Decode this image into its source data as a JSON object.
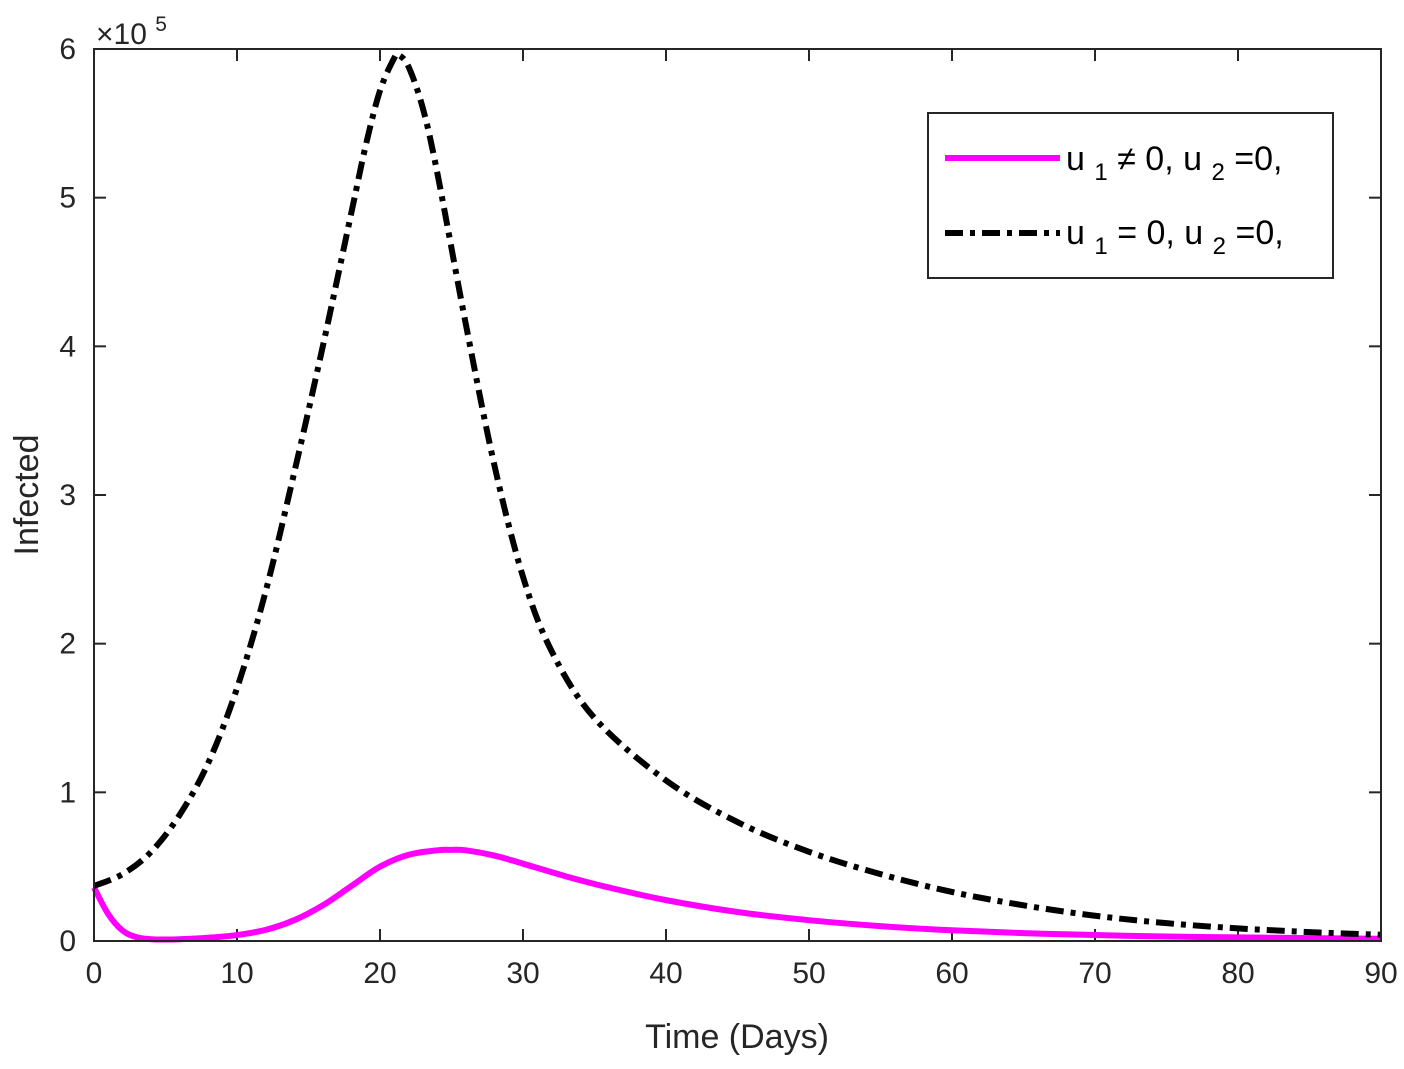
{
  "chart_data": {
    "type": "line",
    "title": "",
    "xlabel": "Time (Days)",
    "ylabel": "Infected",
    "xlim": [
      0,
      90
    ],
    "ylim": [
      0,
      600000
    ],
    "x_ticks": [
      0,
      10,
      20,
      30,
      40,
      50,
      60,
      70,
      80,
      90
    ],
    "y_ticks": [
      0,
      1,
      2,
      3,
      4,
      5,
      6
    ],
    "y_exponent_label": {
      "base": "×10",
      "exp": "5"
    },
    "grid": false,
    "legend_position": "top-right",
    "series": [
      {
        "name": "u1 ≠ 0, u2=0,",
        "legend": {
          "base1": "u",
          "sub1": "1",
          "mid": " ≠ 0, u",
          "sub2": "2",
          "end": "=0,"
        },
        "color": "#ff00ff",
        "line_style": "solid",
        "x": [
          0,
          1,
          2,
          3,
          4,
          5,
          6,
          8,
          10,
          12,
          14,
          16,
          18,
          20,
          22,
          24,
          25,
          26,
          28,
          30,
          33,
          36,
          40,
          45,
          50,
          55,
          60,
          65,
          70,
          75,
          80,
          85,
          90
        ],
        "y": [
          36000,
          18000,
          7000,
          2500,
          1200,
          1000,
          1200,
          2200,
          4000,
          7500,
          14000,
          24000,
          37000,
          50000,
          58000,
          61000,
          61300,
          61000,
          57500,
          52000,
          43500,
          36000,
          27500,
          19500,
          14000,
          10000,
          7200,
          5300,
          4000,
          3000,
          2400,
          1900,
          1500
        ]
      },
      {
        "name": "u1 = 0, u2=0,",
        "legend": {
          "base1": "u",
          "sub1": "1",
          "mid": " = 0, u",
          "sub2": "2",
          "end": "=0,"
        },
        "color": "#000000",
        "line_style": "dashdot",
        "x": [
          0,
          2,
          4,
          6,
          8,
          10,
          12,
          14,
          16,
          18,
          19,
          20,
          21,
          21.3,
          22,
          23,
          24,
          26,
          28,
          30,
          32,
          35,
          40,
          45,
          50,
          55,
          60,
          65,
          70,
          75,
          80,
          85,
          90
        ],
        "y": [
          37000,
          45000,
          60000,
          85000,
          120000,
          170000,
          235000,
          315000,
          400000,
          490000,
          535000,
          572000,
          594000,
          596000,
          588000,
          560000,
          517000,
          415000,
          320000,
          245000,
          195000,
          150000,
          108000,
          80000,
          60000,
          45000,
          33000,
          24000,
          17000,
          12000,
          8500,
          6000,
          4200
        ]
      }
    ]
  }
}
